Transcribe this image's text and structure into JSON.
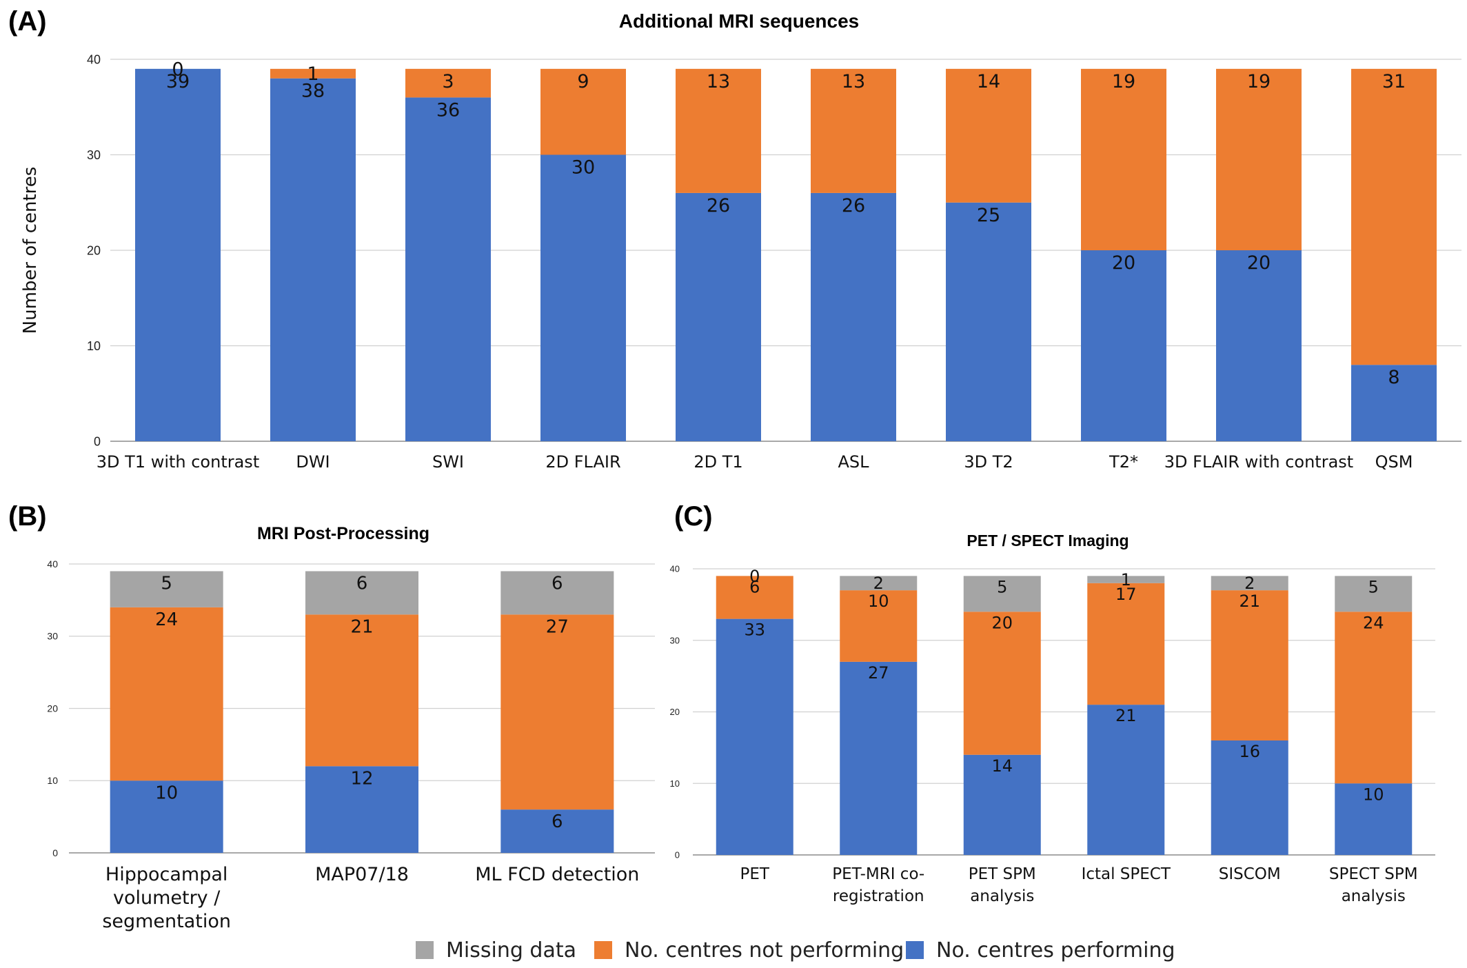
{
  "colors": {
    "performing": "#4472C4",
    "not_performing": "#ED7D31",
    "missing": "#A5A5A5"
  },
  "legend": [
    {
      "key": "missing",
      "label": "Missing data"
    },
    {
      "key": "not_performing",
      "label": "No. centres not performing"
    },
    {
      "key": "performing",
      "label": "No. centres performing"
    }
  ],
  "chart_data": [
    {
      "panel": "(A)",
      "type": "bar",
      "stacked": true,
      "title": "Additional MRI sequences",
      "ylabel": "Number of centres",
      "ylim": [
        0,
        40
      ],
      "yticks": [
        0,
        10,
        20,
        30,
        40
      ],
      "grid": true,
      "categories": [
        "3D T1 with contrast",
        "DWI",
        "SWI",
        "2D FLAIR",
        "2D T1",
        "ASL",
        "3D T2",
        "T2*",
        "3D FLAIR with contrast",
        "QSM"
      ],
      "series": [
        {
          "key": "performing",
          "values": [
            39,
            38,
            36,
            30,
            26,
            26,
            25,
            20,
            20,
            8
          ]
        },
        {
          "key": "not_performing",
          "values": [
            0,
            1,
            3,
            9,
            13,
            13,
            14,
            19,
            19,
            31
          ]
        }
      ]
    },
    {
      "panel": "(B)",
      "type": "bar",
      "stacked": true,
      "title": "MRI Post-Processing",
      "ylim": [
        0,
        40
      ],
      "yticks": [
        0,
        10,
        20,
        30,
        40
      ],
      "grid": true,
      "categories": [
        "Hippocampal volumetry / segmentation",
        "MAP07/18",
        "ML FCD detection"
      ],
      "series": [
        {
          "key": "performing",
          "values": [
            10,
            12,
            6
          ]
        },
        {
          "key": "not_performing",
          "values": [
            24,
            21,
            27
          ]
        },
        {
          "key": "missing",
          "values": [
            5,
            6,
            6
          ]
        }
      ]
    },
    {
      "panel": "(C)",
      "type": "bar",
      "stacked": true,
      "title": "PET / SPECT Imaging",
      "ylim": [
        0,
        40
      ],
      "yticks": [
        0,
        10,
        20,
        30,
        40
      ],
      "grid": true,
      "categories": [
        "PET",
        "PET-MRI co-registration",
        "PET SPM analysis",
        "Ictal SPECT",
        "SISCOM",
        "SPECT SPM analysis"
      ],
      "series": [
        {
          "key": "performing",
          "values": [
            33,
            27,
            14,
            21,
            16,
            10
          ]
        },
        {
          "key": "not_performing",
          "values": [
            6,
            10,
            20,
            17,
            21,
            24
          ]
        },
        {
          "key": "missing",
          "values": [
            0,
            2,
            5,
            1,
            2,
            5
          ]
        }
      ]
    }
  ]
}
